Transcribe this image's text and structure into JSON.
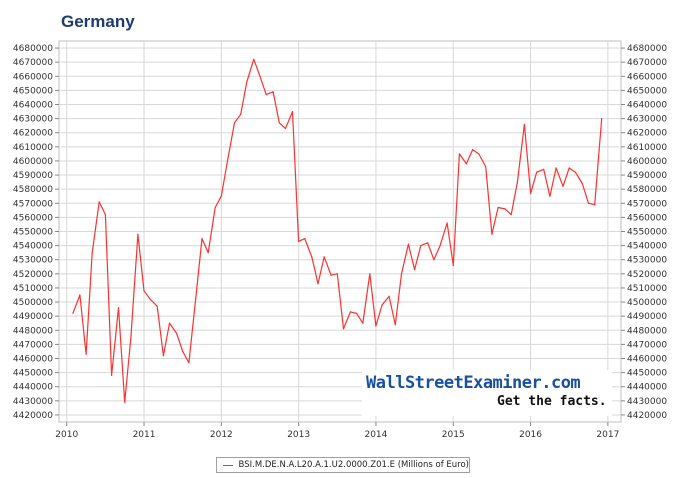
{
  "title": "Germany",
  "watermark": {
    "brand": "WallStreetExaminer.com",
    "tagline": "Get the facts."
  },
  "colors": {
    "series": "#ff3030",
    "title": "#1f3c6e",
    "brand": "#1a4fa3",
    "grid": "#d8d8d8"
  },
  "chart_data": {
    "type": "line",
    "title": "Germany",
    "xlabel": "",
    "ylabel": "",
    "xlim": [
      2009.9,
      2017.17
    ],
    "ylim": [
      4415000,
      4685000
    ],
    "x_ticks": [
      "2010",
      "2011",
      "2012",
      "2013",
      "2014",
      "2015",
      "2016",
      "2017"
    ],
    "y_ticks": [
      "4420000",
      "4430000",
      "4440000",
      "4450000",
      "4460000",
      "4470000",
      "4480000",
      "4490000",
      "4500000",
      "4510000",
      "4520000",
      "4530000",
      "4540000",
      "4550000",
      "4560000",
      "4570000",
      "4580000",
      "4590000",
      "4600000",
      "4610000",
      "4620000",
      "4630000",
      "4640000",
      "4650000",
      "4660000",
      "4670000",
      "4680000"
    ],
    "grid": true,
    "legend_position": "bottom-center",
    "series": [
      {
        "name": "BSI.M.DE.N.A.L20.A.1.U2.0000.Z01.E (Millions of Euro)",
        "x": [
          2010.08,
          2010.17,
          2010.25,
          2010.33,
          2010.42,
          2010.5,
          2010.58,
          2010.67,
          2010.75,
          2010.83,
          2010.92,
          2011.0,
          2011.08,
          2011.17,
          2011.25,
          2011.33,
          2011.42,
          2011.5,
          2011.58,
          2011.67,
          2011.75,
          2011.83,
          2011.92,
          2012.0,
          2012.08,
          2012.17,
          2012.25,
          2012.33,
          2012.42,
          2012.5,
          2012.58,
          2012.67,
          2012.75,
          2012.83,
          2012.92,
          2013.0,
          2013.08,
          2013.17,
          2013.25,
          2013.33,
          2013.42,
          2013.5,
          2013.58,
          2013.67,
          2013.75,
          2013.83,
          2013.92,
          2014.0,
          2014.08,
          2014.17,
          2014.25,
          2014.33,
          2014.42,
          2014.5,
          2014.58,
          2014.67,
          2014.75,
          2014.83,
          2014.92,
          2015.0,
          2015.08,
          2015.17,
          2015.25,
          2015.33,
          2015.42,
          2015.5,
          2015.58,
          2015.67,
          2015.75,
          2015.83,
          2015.92,
          2016.0,
          2016.08,
          2016.17,
          2016.25,
          2016.33,
          2016.42,
          2016.5,
          2016.58,
          2016.67,
          2016.75,
          2016.83,
          2016.92
        ],
        "values": [
          4492000,
          4505000,
          4463000,
          4535000,
          4571000,
          4562000,
          4448000,
          4496000,
          4429000,
          4475000,
          4548000,
          4508000,
          4502000,
          4497000,
          4462000,
          4485000,
          4478000,
          4465000,
          4457000,
          4503000,
          4545000,
          4535000,
          4567000,
          4575000,
          4600000,
          4627000,
          4633000,
          4656000,
          4672000,
          4660000,
          4647000,
          4649000,
          4627000,
          4623000,
          4635000,
          4543000,
          4545000,
          4532000,
          4513000,
          4532000,
          4519000,
          4520000,
          4481000,
          4493000,
          4492000,
          4485000,
          4520000,
          4483000,
          4498000,
          4504000,
          4484000,
          4520000,
          4541000,
          4523000,
          4540000,
          4542000,
          4530000,
          4540000,
          4556000,
          4526000,
          4605000,
          4598000,
          4608000,
          4605000,
          4596000,
          4548000,
          4567000,
          4566000,
          4562000,
          4585000,
          4626000,
          4577000,
          4592000,
          4594000,
          4575000,
          4595000,
          4582000,
          4595000,
          4592000,
          4584000,
          4570000,
          4569000,
          4630000
        ]
      }
    ]
  }
}
